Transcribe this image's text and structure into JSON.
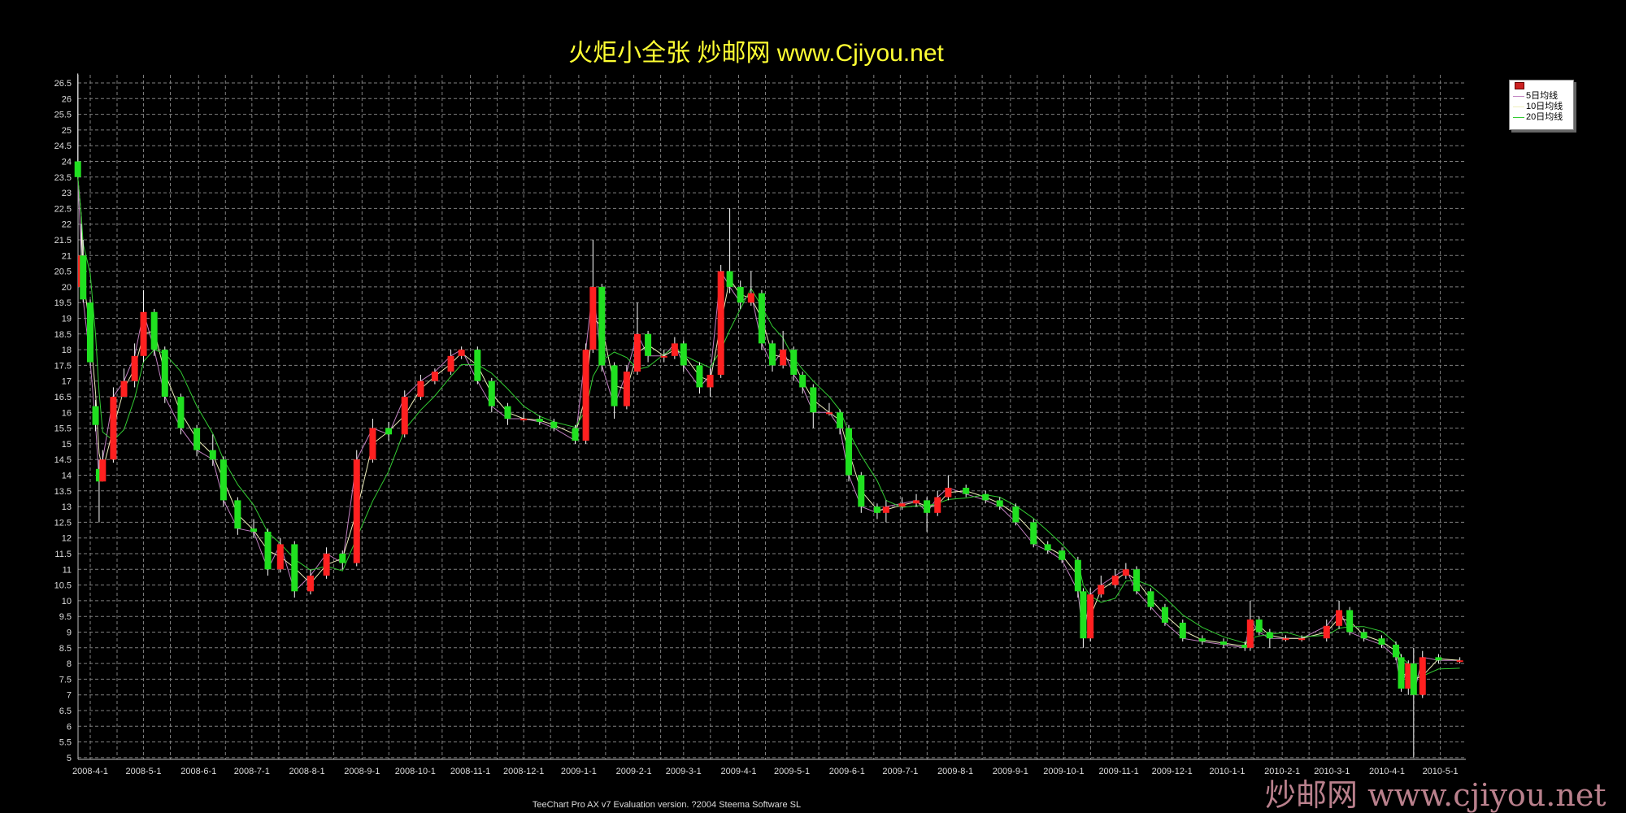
{
  "title": "火炬小全张  炒邮网 www.Cjiyou.net",
  "footer": "TeeChart Pro AX v7 Evaluation version. ?2004 Steema Software SL",
  "watermark": "炒邮网 www.cjiyou.net",
  "legend": {
    "items": [
      {
        "label": "",
        "color": "#cc2222",
        "kind": "candle"
      },
      {
        "label": "5日均线",
        "color": "#c080c0"
      },
      {
        "label": "10日均线",
        "color": "#ffffcc"
      },
      {
        "label": "20日均线",
        "color": "#33cc33"
      }
    ]
  },
  "colors": {
    "up": "#ff2020",
    "down": "#20e020",
    "grid": "#808080",
    "axis": "#c0c0c0",
    "wick": "#ffffff"
  },
  "chart_data": {
    "type": "candlestick",
    "ylim": [
      5,
      26.8
    ],
    "yticks": [
      5,
      5.5,
      6,
      6.5,
      7,
      7.5,
      8,
      8.5,
      9,
      9.5,
      10,
      10.5,
      11,
      11.5,
      12,
      12.5,
      13,
      13.5,
      14,
      14.5,
      15,
      15.5,
      16,
      16.5,
      17,
      17.5,
      18,
      18.5,
      19,
      19.5,
      20,
      20.5,
      21,
      21.5,
      22,
      22.5,
      23,
      23.5,
      24,
      24.5,
      25,
      25.5,
      26,
      26.5
    ],
    "xticks": [
      "2008-4-1",
      "2008-5-1",
      "2008-6-1",
      "2008-7-1",
      "2008-8-1",
      "2008-9-1",
      "2008-10-1",
      "2008-11-1",
      "2008-12-1",
      "2009-1-1",
      "2009-2-1",
      "2009-3-1",
      "2009-4-1",
      "2009-5-1",
      "2009-6-1",
      "2009-7-1",
      "2009-8-1",
      "2009-9-1",
      "2009-10-1",
      "2009-11-1",
      "2009-12-1",
      "2010-1-1",
      "2010-2-1",
      "2010-3-1",
      "2010-4-1",
      "2010-5-1"
    ],
    "grid": true,
    "legend_position": "top-right",
    "series_names": [
      "5日均线",
      "10日均线",
      "20日均线"
    ],
    "candles": [
      [
        "2008-03-25",
        24,
        26.8,
        23.5,
        23.5
      ],
      [
        "2008-03-27",
        20,
        22,
        20,
        21
      ],
      [
        "2008-03-28",
        21,
        21.5,
        19.5,
        19.6
      ],
      [
        "2008-04-01",
        19.5,
        19.6,
        17.5,
        17.6
      ],
      [
        "2008-04-04",
        16.2,
        16.4,
        15.4,
        15.6
      ],
      [
        "2008-04-06",
        14.2,
        14.5,
        12.5,
        13.8
      ],
      [
        "2008-04-08",
        13.8,
        14.8,
        13.8,
        14.5
      ],
      [
        "2008-04-14",
        14.5,
        16.8,
        14.4,
        16.5
      ],
      [
        "2008-04-20",
        16.5,
        17.4,
        16.6,
        17
      ],
      [
        "2008-04-26",
        17,
        18.2,
        16.8,
        17.8
      ],
      [
        "2008-05-01",
        17.8,
        19.9,
        17.6,
        19.2
      ],
      [
        "2008-05-07",
        19.2,
        19.3,
        17.8,
        18
      ],
      [
        "2008-05-13",
        18,
        18.1,
        16.3,
        16.5
      ],
      [
        "2008-05-22",
        16.5,
        16.6,
        15.3,
        15.5
      ],
      [
        "2008-05-31",
        15.5,
        15.6,
        14.6,
        14.8
      ],
      [
        "2008-06-09",
        14.8,
        15.3,
        14.3,
        14.5
      ],
      [
        "2008-06-15",
        14.5,
        14.6,
        13,
        13.2
      ],
      [
        "2008-06-23",
        13.2,
        13.3,
        12.1,
        12.3
      ],
      [
        "2008-07-02",
        12.3,
        12.6,
        12,
        12.2
      ],
      [
        "2008-07-10",
        12.2,
        12.3,
        10.8,
        11
      ],
      [
        "2008-07-17",
        11,
        12,
        10.9,
        11.8
      ],
      [
        "2008-07-25",
        11.8,
        11.9,
        10.1,
        10.3
      ],
      [
        "2008-08-03",
        10.3,
        11,
        10.2,
        10.8
      ],
      [
        "2008-08-12",
        10.8,
        11.7,
        10.7,
        11.5
      ],
      [
        "2008-08-21",
        11.5,
        11.6,
        11,
        11.2
      ],
      [
        "2008-08-29",
        11.2,
        14.8,
        11.1,
        14.5
      ],
      [
        "2008-09-07",
        14.5,
        15.8,
        14.4,
        15.5
      ],
      [
        "2008-09-16",
        15.5,
        15.7,
        15.1,
        15.3
      ],
      [
        "2008-09-25",
        15.3,
        16.7,
        15.2,
        16.5
      ],
      [
        "2008-10-04",
        16.5,
        17.2,
        16.4,
        17
      ],
      [
        "2008-10-12",
        17,
        17.4,
        16.9,
        17.3
      ],
      [
        "2008-10-21",
        17.3,
        18,
        17.2,
        17.8
      ],
      [
        "2008-10-27",
        17.8,
        18.1,
        17.7,
        18
      ],
      [
        "2008-11-05",
        18,
        18.1,
        16.9,
        17
      ],
      [
        "2008-11-13",
        17,
        17.1,
        16,
        16.2
      ],
      [
        "2008-11-22",
        16.2,
        16.3,
        15.6,
        15.8
      ],
      [
        "2008-12-01",
        15.8,
        16,
        15.7,
        15.8
      ],
      [
        "2008-12-10",
        15.8,
        15.9,
        15.6,
        15.7
      ],
      [
        "2008-12-18",
        15.7,
        15.8,
        15.4,
        15.5
      ],
      [
        "2008-12-30",
        15.5,
        15.6,
        15,
        15.1
      ],
      [
        "2009-01-05",
        15.1,
        18.2,
        15,
        18
      ],
      [
        "2009-01-09",
        18,
        21.5,
        17.9,
        20
      ],
      [
        "2009-01-14",
        20,
        20.1,
        17.3,
        17.5
      ],
      [
        "2009-01-21",
        17.5,
        17.6,
        15.8,
        16.2
      ],
      [
        "2009-01-28",
        16.2,
        17.5,
        16.1,
        17.3
      ],
      [
        "2009-02-03",
        17.3,
        19.5,
        17.2,
        18.5
      ],
      [
        "2009-02-09",
        18.5,
        18.6,
        17.6,
        17.8
      ],
      [
        "2009-02-18",
        17.8,
        18,
        17.6,
        17.8
      ],
      [
        "2009-02-24",
        17.8,
        18.4,
        17.7,
        18.2
      ],
      [
        "2009-03-01",
        18.2,
        18.3,
        17.3,
        17.5
      ],
      [
        "2009-03-10",
        17.5,
        17.6,
        16.6,
        16.8
      ],
      [
        "2009-03-16",
        16.8,
        17.4,
        16.5,
        17.2
      ],
      [
        "2009-03-22",
        17.2,
        20.7,
        17.1,
        20.5
      ],
      [
        "2009-03-27",
        20.5,
        22.5,
        19.8,
        20
      ],
      [
        "2009-04-02",
        20,
        20.2,
        19.3,
        19.5
      ],
      [
        "2009-04-08",
        19.5,
        20.5,
        19.4,
        19.8
      ],
      [
        "2009-04-14",
        19.8,
        19.9,
        18,
        18.2
      ],
      [
        "2009-04-20",
        18.2,
        18.3,
        17.3,
        17.5
      ],
      [
        "2009-04-26",
        17.5,
        18.6,
        17.4,
        18
      ],
      [
        "2009-05-02",
        18,
        18.1,
        17,
        17.2
      ],
      [
        "2009-05-07",
        17.2,
        17.3,
        16.6,
        16.8
      ],
      [
        "2009-05-13",
        16.8,
        16.9,
        15.5,
        16
      ],
      [
        "2009-05-22",
        16,
        16.3,
        15.9,
        16
      ],
      [
        "2009-05-28",
        16,
        16.1,
        15.3,
        15.5
      ],
      [
        "2009-06-02",
        15.5,
        15.6,
        13.8,
        14
      ],
      [
        "2009-06-09",
        14,
        14.1,
        12.8,
        13
      ],
      [
        "2009-06-18",
        13,
        13.1,
        12.6,
        12.8
      ],
      [
        "2009-06-23",
        12.8,
        13.2,
        12.5,
        13
      ],
      [
        "2009-07-02",
        13,
        13.3,
        12.9,
        13.1
      ],
      [
        "2009-07-10",
        13.1,
        13.4,
        13,
        13.2
      ],
      [
        "2009-07-16",
        13.2,
        13.3,
        12.2,
        12.8
      ],
      [
        "2009-07-22",
        12.8,
        13.5,
        12.7,
        13.3
      ],
      [
        "2009-07-28",
        13.3,
        14,
        13.2,
        13.6
      ],
      [
        "2009-08-07",
        13.6,
        13.7,
        13.3,
        13.4
      ],
      [
        "2009-08-18",
        13.4,
        13.5,
        13.1,
        13.2
      ],
      [
        "2009-08-26",
        13.2,
        13.3,
        12.9,
        13
      ],
      [
        "2009-09-04",
        13,
        13.1,
        12.4,
        12.5
      ],
      [
        "2009-09-14",
        12.5,
        12.6,
        11.7,
        11.8
      ],
      [
        "2009-09-22",
        11.8,
        11.9,
        11.5,
        11.6
      ],
      [
        "2009-09-30",
        11.6,
        11.7,
        11.2,
        11.3
      ],
      [
        "2009-10-09",
        11.3,
        11.4,
        10.1,
        10.3
      ],
      [
        "2009-10-12",
        10.3,
        10.4,
        8.5,
        8.8
      ],
      [
        "2009-10-16",
        8.8,
        10.4,
        8.7,
        10.2
      ],
      [
        "2009-10-22",
        10.2,
        10.8,
        10.1,
        10.5
      ],
      [
        "2009-10-30",
        10.5,
        11,
        10.4,
        10.8
      ],
      [
        "2009-11-05",
        10.8,
        11.2,
        10.7,
        11
      ],
      [
        "2009-11-11",
        11,
        11.1,
        10.2,
        10.3
      ],
      [
        "2009-11-19",
        10.3,
        10.4,
        9.7,
        9.8
      ],
      [
        "2009-11-27",
        9.8,
        9.9,
        9.2,
        9.3
      ],
      [
        "2009-12-07",
        9.3,
        9.4,
        8.7,
        8.8
      ],
      [
        "2009-12-18",
        8.8,
        8.9,
        8.6,
        8.7
      ],
      [
        "2009-12-30",
        8.7,
        8.8,
        8.5,
        8.6
      ],
      [
        "2010-01-11",
        8.6,
        8.7,
        8.4,
        8.5
      ],
      [
        "2010-01-14",
        8.5,
        10,
        8.4,
        9.4
      ],
      [
        "2010-01-19",
        9.4,
        9.5,
        8.9,
        9
      ],
      [
        "2010-01-25",
        9,
        9.1,
        8.5,
        8.8
      ],
      [
        "2010-02-03",
        8.8,
        8.9,
        8.7,
        8.8
      ],
      [
        "2010-02-12",
        8.8,
        8.9,
        8.7,
        8.8
      ],
      [
        "2010-02-26",
        8.8,
        9.4,
        8.7,
        9.2
      ],
      [
        "2010-03-05",
        9.2,
        10,
        9.1,
        9.7
      ],
      [
        "2010-03-11",
        9.7,
        9.8,
        8.9,
        9
      ],
      [
        "2010-03-19",
        9,
        9.1,
        8.7,
        8.8
      ],
      [
        "2010-03-29",
        8.8,
        8.9,
        8.5,
        8.6
      ],
      [
        "2010-04-06",
        8.6,
        8.7,
        8.1,
        8.2
      ],
      [
        "2010-04-09",
        8.2,
        8.3,
        7.1,
        7.2
      ],
      [
        "2010-04-13",
        7.2,
        8.1,
        7,
        8
      ],
      [
        "2010-04-16",
        8,
        8.5,
        5,
        7
      ],
      [
        "2010-04-21",
        7,
        8.4,
        6.9,
        8.2
      ],
      [
        "2010-04-30",
        8.2,
        8.3,
        8,
        8.1
      ],
      [
        "2010-05-12",
        8.1,
        8.2,
        8,
        8.1
      ]
    ]
  }
}
